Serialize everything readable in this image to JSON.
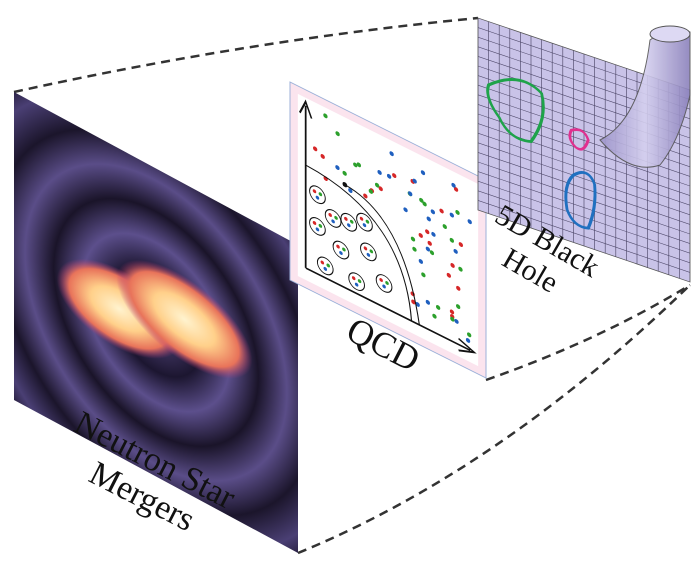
{
  "panels": [
    {
      "label_lines": [
        "Neutron Star",
        "Mergers"
      ]
    },
    {
      "label_lines": [
        "QCD"
      ]
    },
    {
      "label_lines": [
        "5D Black",
        "Hole"
      ]
    }
  ]
}
